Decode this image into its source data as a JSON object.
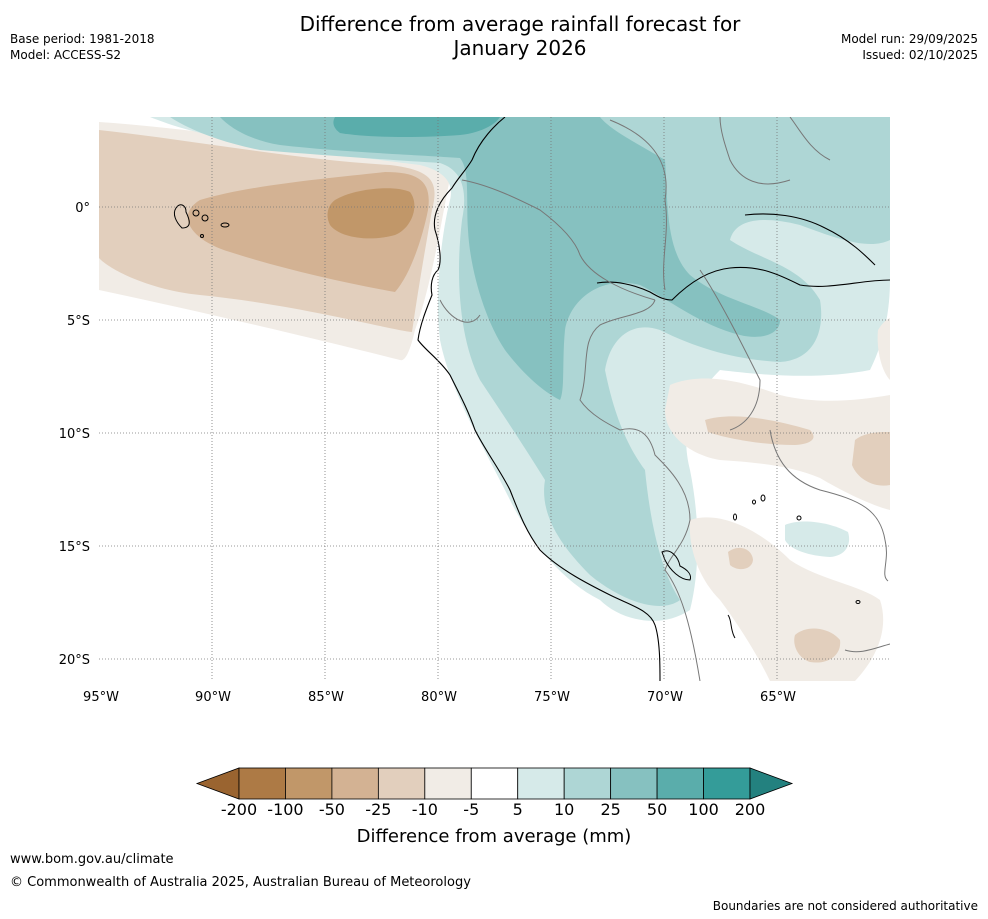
{
  "header": {
    "title_line1": "Difference from average rainfall forecast for",
    "title_line2": "January 2026",
    "base_period": "Base period: 1981-2018",
    "model": "Model: ACCESS-S2",
    "model_run": "Model run: 29/09/2025",
    "issued": "Issued: 02/10/2025"
  },
  "map": {
    "lat_labels": [
      "0°",
      "5°S",
      "10°S",
      "15°S",
      "20°S"
    ],
    "lon_labels": [
      "95°W",
      "90°W",
      "85°W",
      "80°W",
      "75°W",
      "70°W",
      "65°W"
    ]
  },
  "colorbar": {
    "ticks": [
      "-200",
      "-100",
      "-50",
      "-25",
      "-10",
      "-5",
      "5",
      "10",
      "25",
      "50",
      "100",
      "200"
    ],
    "colors": [
      "#9a6430",
      "#ad7a45",
      "#c19769",
      "#d3b293",
      "#e2cfbd",
      "#f1ece6",
      "#ffffff",
      "#d6eae9",
      "#aed6d5",
      "#86c1c0",
      "#5aadab",
      "#349c99",
      "#23817f"
    ],
    "label": "Difference from average (mm)"
  },
  "footer": {
    "url": "www.bom.gov.au/climate",
    "copyright": "© Commonwealth of Australia 2025, Australian Bureau of Meteorology",
    "note": "Boundaries are not considered authoritative"
  }
}
